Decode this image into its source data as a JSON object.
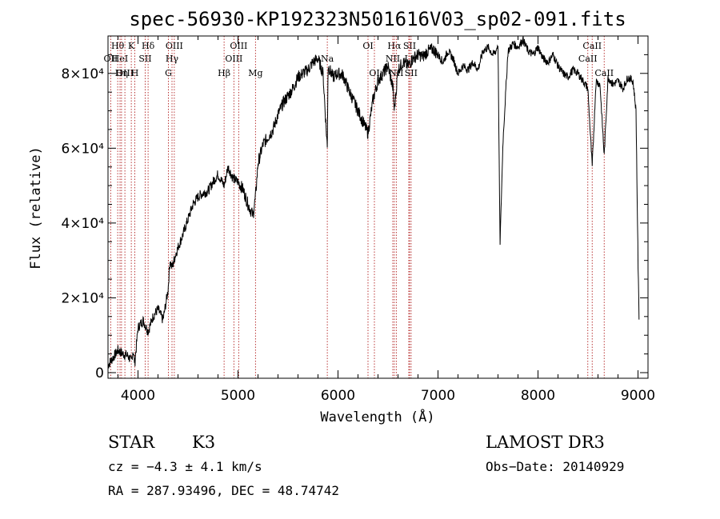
{
  "chart_data": {
    "type": "line",
    "title": "spec-56930-KP192323N501616V03_sp02-091.fits",
    "xlabel": "Wavelength (Å)",
    "ylabel": "Flux (relative)",
    "xlim": [
      3700,
      9100
    ],
    "ylim": [
      -1500,
      90000
    ],
    "xticks": [
      {
        "value": 4000,
        "label": "4000"
      },
      {
        "value": 5000,
        "label": "5000"
      },
      {
        "value": 6000,
        "label": "6000"
      },
      {
        "value": 7000,
        "label": "7000"
      },
      {
        "value": 8000,
        "label": "8000"
      },
      {
        "value": 9000,
        "label": "9000"
      }
    ],
    "yticks": [
      {
        "value": 0,
        "label": "0"
      },
      {
        "value": 20000,
        "label": "2×10⁴"
      },
      {
        "value": 40000,
        "label": "4×10⁴"
      },
      {
        "value": 60000,
        "label": "6×10⁴"
      },
      {
        "value": 80000,
        "label": "8×10⁴"
      }
    ],
    "series": [
      {
        "name": "flux",
        "x": [
          3700,
          3750,
          3800,
          3850,
          3900,
          3933,
          3950,
          3968,
          4000,
          4050,
          4101,
          4150,
          4200,
          4250,
          4300,
          4320,
          4340,
          4380,
          4450,
          4500,
          4550,
          4600,
          4650,
          4700,
          4750,
          4800,
          4861,
          4900,
          4950,
          5000,
          5050,
          5100,
          5150,
          5175,
          5200,
          5250,
          5300,
          5350,
          5400,
          5450,
          5500,
          5550,
          5600,
          5650,
          5700,
          5750,
          5800,
          5850,
          5893,
          5900,
          5950,
          6000,
          6050,
          6100,
          6150,
          6200,
          6250,
          6300,
          6350,
          6400,
          6450,
          6500,
          6550,
          6563,
          6600,
          6650,
          6700,
          6750,
          6800,
          6850,
          6900,
          6950,
          7000,
          7050,
          7100,
          7150,
          7200,
          7250,
          7300,
          7350,
          7400,
          7450,
          7500,
          7550,
          7580,
          7600,
          7620,
          7650,
          7700,
          7750,
          7800,
          7850,
          7900,
          7950,
          8000,
          8050,
          8100,
          8150,
          8200,
          8250,
          8300,
          8350,
          8400,
          8450,
          8498,
          8542,
          8580,
          8620,
          8662,
          8700,
          8750,
          8800,
          8850,
          8900,
          8950,
          8980,
          9000,
          9010
        ],
        "y": [
          2000,
          4000,
          6000,
          5000,
          4500,
          3000,
          6000,
          2500,
          12000,
          14000,
          11000,
          15000,
          17000,
          14000,
          22000,
          30000,
          28000,
          32000,
          37000,
          41000,
          45000,
          47000,
          48000,
          48500,
          51000,
          53000,
          50000,
          55000,
          52000,
          51000,
          49000,
          45000,
          42000,
          47000,
          56000,
          61000,
          63000,
          65000,
          69000,
          72000,
          74000,
          76000,
          79000,
          80000,
          81000,
          83000,
          84000,
          80000,
          60000,
          82000,
          79000,
          80000,
          79500,
          76000,
          73000,
          70000,
          67000,
          64000,
          73000,
          78000,
          80000,
          82000,
          76000,
          70000,
          81000,
          83000,
          82000,
          84000,
          85000,
          84500,
          86000,
          86500,
          85000,
          83000,
          86000,
          84000,
          80000,
          82000,
          81000,
          83000,
          81000,
          86000,
          87000,
          85000,
          86000,
          88000,
          34000,
          62000,
          86000,
          88000,
          87000,
          89000,
          86000,
          85000,
          87000,
          84000,
          83000,
          85000,
          82000,
          80000,
          79000,
          81000,
          80000,
          78000,
          76000,
          55000,
          78000,
          77000,
          58000,
          79000,
          77000,
          78000,
          76000,
          79000,
          78000,
          70000,
          30000,
          15000
        ]
      }
    ],
    "spectral_lines": [
      {
        "label": "Hθ",
        "wavelength": 3797,
        "row": 1
      },
      {
        "label": "OII",
        "wavelength": 3727,
        "row": 2
      },
      {
        "label": "HeI",
        "wavelength": 3820,
        "row": 2
      },
      {
        "label": "OIII",
        "wavelength": 3869,
        "row": 3
      },
      {
        "label": "Hη",
        "wavelength": 3835,
        "row": 3
      },
      {
        "label": "K",
        "wavelength": 3933,
        "row": 1
      },
      {
        "label": "SII",
        "wavelength": 4072,
        "row": 2
      },
      {
        "label": "H",
        "wavelength": 3968,
        "row": 3
      },
      {
        "label": "Hδ",
        "wavelength": 4101,
        "row": 1
      },
      {
        "label": "OIII",
        "wavelength": 4363,
        "row": 1
      },
      {
        "label": "Hγ",
        "wavelength": 4340,
        "row": 2
      },
      {
        "label": "G",
        "wavelength": 4304,
        "row": 3
      },
      {
        "label": "Hβ",
        "wavelength": 4861,
        "row": 3
      },
      {
        "label": "OIII",
        "wavelength": 5007,
        "row": 1
      },
      {
        "label": "OIII",
        "wavelength": 4959,
        "row": 2
      },
      {
        "label": "Mg",
        "wavelength": 5175,
        "row": 3
      },
      {
        "label": "Na",
        "wavelength": 5893,
        "row": 2
      },
      {
        "label": "OI",
        "wavelength": 6300,
        "row": 1
      },
      {
        "label": "OI",
        "wavelength": 6364,
        "row": 3
      },
      {
        "label": "Hα",
        "wavelength": 6563,
        "row": 1
      },
      {
        "label": "NII",
        "wavelength": 6548,
        "row": 2
      },
      {
        "label": "NII",
        "wavelength": 6583,
        "row": 3
      },
      {
        "label": "SII",
        "wavelength": 6716,
        "row": 1
      },
      {
        "label": "Li",
        "wavelength": 6708,
        "row": 2
      },
      {
        "label": "SII",
        "wavelength": 6731,
        "row": 3
      },
      {
        "label": "CaII",
        "wavelength": 8542,
        "row": 1
      },
      {
        "label": "CaII",
        "wavelength": 8498,
        "row": 2
      },
      {
        "label": "CaII",
        "wavelength": 8662,
        "row": 3
      }
    ]
  },
  "info": {
    "class": "STAR",
    "subclass": "K3",
    "survey": "LAMOST DR3",
    "cz": "cz = −4.3 ± 4.1 km/s",
    "obs_date": "Obs−Date: 20140929",
    "radec": "RA = 287.93496, DEC =  48.74742"
  }
}
